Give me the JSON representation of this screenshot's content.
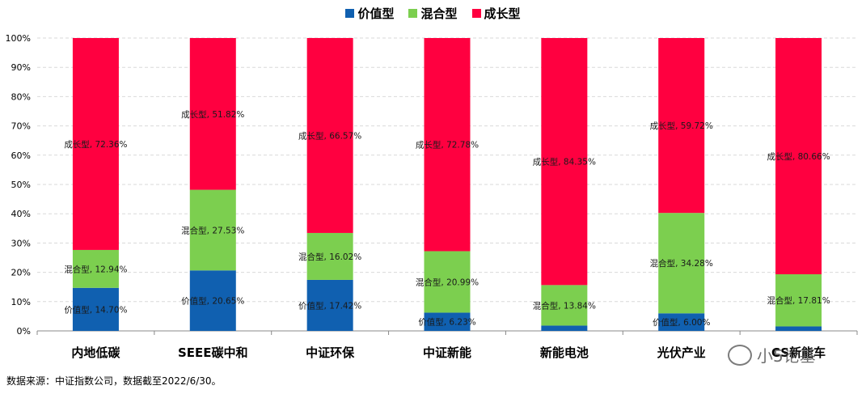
{
  "legend": [
    {
      "label": "价值型",
      "color": "#1060b0"
    },
    {
      "label": "混合型",
      "color": "#7ccf4f"
    },
    {
      "label": "成长型",
      "color": "#ff0040"
    }
  ],
  "source_note": "数据来源：中证指数公司，数据截至2022/6/30。",
  "watermark": "小5论基",
  "chart_data": {
    "type": "bar",
    "stacked": true,
    "categories": [
      "内地低碳",
      "SEEE碳中和",
      "中证环保",
      "中证新能",
      "新能电池",
      "光伏产业",
      "CS新能车"
    ],
    "series": [
      {
        "name": "价值型",
        "color": "#1060b0",
        "values": [
          14.7,
          20.65,
          17.42,
          6.23,
          1.81,
          6.0,
          1.53
        ],
        "labels": [
          "价值型, 14.70%",
          "价值型, 20.65%",
          "价值型, 17.42%",
          "价值型, 6.23%",
          "",
          "价值型, 6.00%",
          ""
        ]
      },
      {
        "name": "混合型",
        "color": "#7ccf4f",
        "values": [
          12.94,
          27.53,
          16.02,
          20.99,
          13.84,
          34.28,
          17.81
        ],
        "labels": [
          "混合型, 12.94%",
          "混合型, 27.53%",
          "混合型, 16.02%",
          "混合型, 20.99%",
          "混合型, 13.84%",
          "混合型, 34.28%",
          "混合型, 17.81%"
        ]
      },
      {
        "name": "成长型",
        "color": "#ff0040",
        "values": [
          72.36,
          51.82,
          66.57,
          72.78,
          84.35,
          59.72,
          80.66
        ],
        "labels": [
          "成长型, 72.36%",
          "成长型, 51.82%",
          "成长型, 66.57%",
          "成长型, 72.78%",
          "成长型, 84.35%",
          "成长型, 59.72%",
          "成长型, 80.66%"
        ]
      }
    ],
    "yticks": [
      "0%",
      "10%",
      "20%",
      "30%",
      "40%",
      "50%",
      "60%",
      "70%",
      "80%",
      "90%",
      "100%"
    ],
    "ylim": [
      0,
      100
    ],
    "grid": true,
    "legend_position": "top-center"
  }
}
